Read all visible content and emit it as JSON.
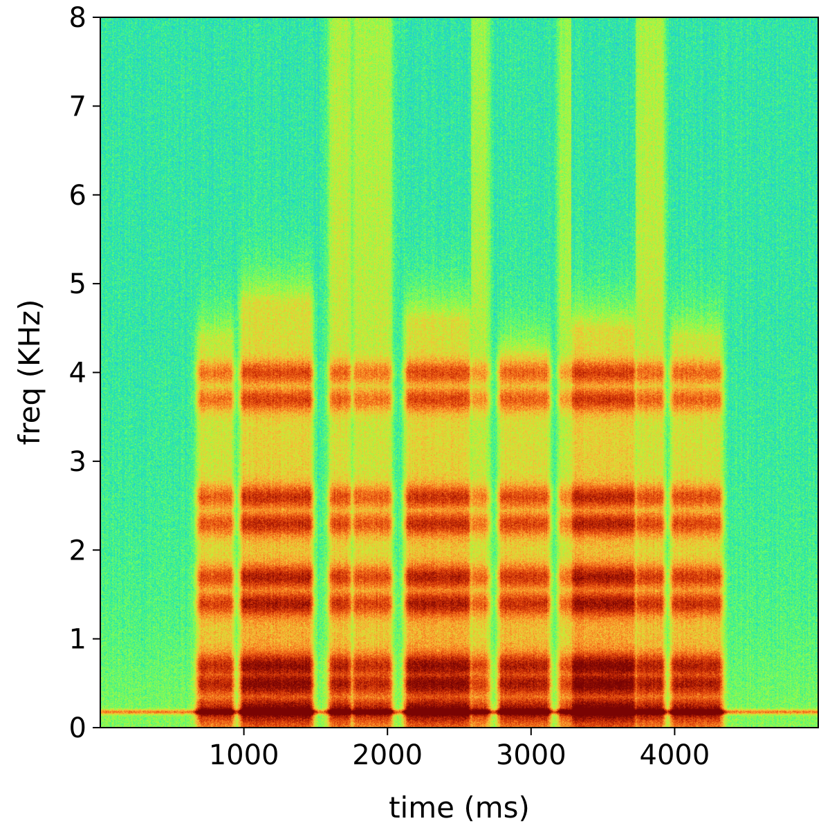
{
  "chart_data": {
    "type": "heatmap",
    "subtype": "spectrogram",
    "title": "",
    "xlabel": "time (ms)",
    "ylabel": "freq (KHz)",
    "xlim": [
      0,
      5000
    ],
    "ylim": [
      0,
      8
    ],
    "x_ticks": [
      1000,
      2000,
      3000,
      4000
    ],
    "x_tick_labels": [
      "1000",
      "2000",
      "3000",
      "4000"
    ],
    "y_ticks": [
      0,
      1,
      2,
      3,
      4,
      5,
      6,
      7,
      8
    ],
    "y_tick_labels": [
      "0",
      "1",
      "2",
      "3",
      "4",
      "5",
      "6",
      "7",
      "8"
    ],
    "colormap": "turbo",
    "colormap_stops": [
      "#30123b",
      "#4662d7",
      "#36aaf9",
      "#1ae4b6",
      "#72fe5e",
      "#c8ef34",
      "#faba39",
      "#f66b19",
      "#ca2a04",
      "#7a0403"
    ],
    "grid": false,
    "background_level": 0.35,
    "voiced_segments": [
      {
        "start": 700,
        "end": 900,
        "top_khz": 4.4,
        "intensity": 0.8
      },
      {
        "start": 1000,
        "end": 1450,
        "top_khz": 4.8,
        "intensity": 0.95
      },
      {
        "start": 1620,
        "end": 1720,
        "top_khz": 8.0,
        "intensity": 0.85
      },
      {
        "start": 1780,
        "end": 2000,
        "top_khz": 8.0,
        "intensity": 0.8
      },
      {
        "start": 2150,
        "end": 2550,
        "top_khz": 4.6,
        "intensity": 0.95
      },
      {
        "start": 2600,
        "end": 2680,
        "top_khz": 8.0,
        "intensity": 0.7
      },
      {
        "start": 2800,
        "end": 3100,
        "top_khz": 4.2,
        "intensity": 0.85
      },
      {
        "start": 3220,
        "end": 3300,
        "top_khz": 8.0,
        "intensity": 0.7
      },
      {
        "start": 3300,
        "end": 3700,
        "top_khz": 4.5,
        "intensity": 1.0
      },
      {
        "start": 3750,
        "end": 3900,
        "top_khz": 8.0,
        "intensity": 0.85
      },
      {
        "start": 4000,
        "end": 4300,
        "top_khz": 4.4,
        "intensity": 0.85
      }
    ],
    "formant_bands_khz": [
      0.2,
      0.5,
      0.7,
      1.4,
      1.7,
      2.3,
      2.6,
      3.7,
      4.0
    ],
    "constant_band_khz": 0.18
  }
}
